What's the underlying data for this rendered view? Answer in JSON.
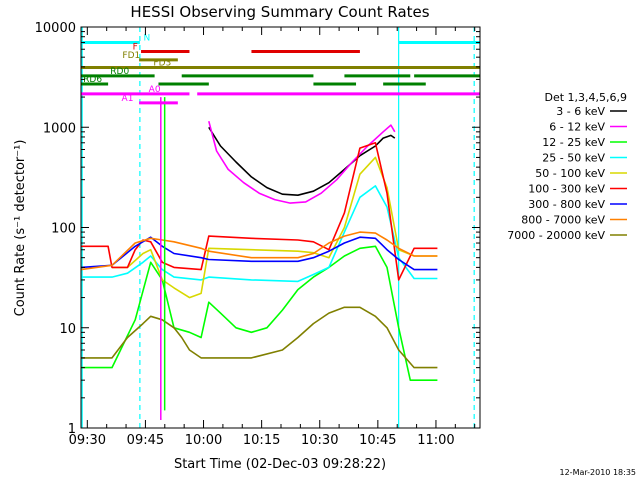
{
  "chart_data": {
    "type": "line",
    "title": "HESSI Observing Summary Count Rates",
    "xlabel": "Start Time (02-Dec-03 09:28:22)",
    "ylabel": "Count Rate (s⁻¹ detector⁻¹)",
    "x_unit": "minutes after 09:28:22",
    "xlim": [
      0,
      103
    ],
    "ylim": [
      1,
      10000
    ],
    "y_scale": "log",
    "x_ticks": [
      {
        "value": 1.63,
        "label": "09:30"
      },
      {
        "value": 16.63,
        "label": "09:45"
      },
      {
        "value": 31.63,
        "label": "10:00"
      },
      {
        "value": 46.63,
        "label": "10:15"
      },
      {
        "value": 61.63,
        "label": "10:30"
      },
      {
        "value": 76.63,
        "label": "10:45"
      },
      {
        "value": 91.63,
        "label": "11:00"
      }
    ],
    "y_ticks": [
      {
        "value": 1,
        "label": "1"
      },
      {
        "value": 10,
        "label": "10"
      },
      {
        "value": 100,
        "label": "100"
      },
      {
        "value": 1000,
        "label": "1000"
      },
      {
        "value": 10000,
        "label": "10000"
      }
    ],
    "grid": false,
    "legend_title": "Det 1,3,4,5,6,9",
    "legend_position": "right",
    "series": [
      {
        "name": "3 - 6 keV",
        "color": "#000000",
        "points": [
          [
            33,
            1000
          ],
          [
            36,
            650
          ],
          [
            40,
            450
          ],
          [
            44,
            320
          ],
          [
            48,
            250
          ],
          [
            52,
            215
          ],
          [
            56,
            210
          ],
          [
            60,
            230
          ],
          [
            64,
            280
          ],
          [
            68,
            380
          ],
          [
            72,
            520
          ],
          [
            76,
            650
          ],
          [
            78,
            780
          ],
          [
            80,
            830
          ],
          [
            81,
            780
          ]
        ]
      },
      {
        "name": "6 - 12 keV",
        "color": "#ff00ff",
        "points": [
          [
            33,
            1150
          ],
          [
            35,
            580
          ],
          [
            38,
            380
          ],
          [
            42,
            280
          ],
          [
            46,
            220
          ],
          [
            50,
            190
          ],
          [
            54,
            175
          ],
          [
            58,
            180
          ],
          [
            62,
            220
          ],
          [
            66,
            300
          ],
          [
            70,
            450
          ],
          [
            74,
            650
          ],
          [
            78,
            900
          ],
          [
            80,
            1050
          ],
          [
            81,
            900
          ]
        ]
      },
      {
        "name": "12 - 25 keV",
        "color": "#00ff00",
        "points": [
          [
            0,
            4
          ],
          [
            8,
            4
          ],
          [
            14,
            12
          ],
          [
            18,
            45
          ],
          [
            21,
            30
          ],
          [
            24,
            10
          ],
          [
            28,
            9
          ],
          [
            31,
            8
          ],
          [
            33,
            18
          ],
          [
            36,
            14
          ],
          [
            40,
            10
          ],
          [
            44,
            9
          ],
          [
            48,
            10
          ],
          [
            52,
            15
          ],
          [
            56,
            24
          ],
          [
            60,
            32
          ],
          [
            64,
            40
          ],
          [
            68,
            52
          ],
          [
            72,
            62
          ],
          [
            76,
            65
          ],
          [
            79,
            40
          ],
          [
            82,
            10
          ],
          [
            85,
            3
          ],
          [
            92,
            3
          ]
        ]
      },
      {
        "name": "25 - 50 keV",
        "color": "#00ffff",
        "points": [
          [
            0,
            32
          ],
          [
            8,
            32
          ],
          [
            12,
            35
          ],
          [
            16,
            45
          ],
          [
            18,
            52
          ],
          [
            21,
            38
          ],
          [
            24,
            32
          ],
          [
            31,
            30
          ],
          [
            33,
            32
          ],
          [
            44,
            30
          ],
          [
            56,
            29
          ],
          [
            60,
            34
          ],
          [
            64,
            40
          ],
          [
            68,
            90
          ],
          [
            72,
            200
          ],
          [
            76,
            260
          ],
          [
            79,
            160
          ],
          [
            82,
            50
          ],
          [
            86,
            31
          ],
          [
            92,
            31
          ]
        ]
      },
      {
        "name": "50 - 100 keV",
        "color": "#d8d800",
        "points": [
          [
            8,
            40
          ],
          [
            12,
            40
          ],
          [
            16,
            55
          ],
          [
            18,
            60
          ],
          [
            21,
            30
          ],
          [
            24,
            25
          ],
          [
            28,
            20
          ],
          [
            31,
            22
          ],
          [
            33,
            62
          ],
          [
            44,
            60
          ],
          [
            56,
            58
          ],
          [
            60,
            56
          ],
          [
            64,
            50
          ],
          [
            68,
            100
          ],
          [
            72,
            340
          ],
          [
            76,
            500
          ],
          [
            79,
            250
          ],
          [
            82,
            60
          ],
          [
            86,
            52
          ],
          [
            92,
            52
          ]
        ]
      },
      {
        "name": "100 - 300 keV",
        "color": "#ff0000",
        "points": [
          [
            0,
            65
          ],
          [
            7,
            65
          ],
          [
            8,
            40
          ],
          [
            12,
            40
          ],
          [
            14,
            60
          ],
          [
            16,
            75
          ],
          [
            18,
            72
          ],
          [
            21,
            45
          ],
          [
            24,
            40
          ],
          [
            31,
            38
          ],
          [
            33,
            82
          ],
          [
            44,
            78
          ],
          [
            56,
            75
          ],
          [
            60,
            72
          ],
          [
            64,
            60
          ],
          [
            68,
            140
          ],
          [
            72,
            620
          ],
          [
            76,
            700
          ],
          [
            79,
            220
          ],
          [
            82,
            30
          ],
          [
            86,
            62
          ],
          [
            92,
            62
          ]
        ]
      },
      {
        "name": "300 - 800 keV",
        "color": "#0000ff",
        "points": [
          [
            0,
            40
          ],
          [
            8,
            42
          ],
          [
            14,
            65
          ],
          [
            18,
            80
          ],
          [
            21,
            65
          ],
          [
            24,
            55
          ],
          [
            31,
            50
          ],
          [
            33,
            48
          ],
          [
            44,
            46
          ],
          [
            56,
            46
          ],
          [
            60,
            50
          ],
          [
            64,
            58
          ],
          [
            68,
            70
          ],
          [
            72,
            80
          ],
          [
            76,
            78
          ],
          [
            79,
            60
          ],
          [
            82,
            48
          ],
          [
            86,
            38
          ],
          [
            92,
            38
          ]
        ]
      },
      {
        "name": "800 - 7000 keV",
        "color": "#ff8000",
        "points": [
          [
            0,
            38
          ],
          [
            8,
            42
          ],
          [
            14,
            70
          ],
          [
            18,
            78
          ],
          [
            21,
            75
          ],
          [
            24,
            72
          ],
          [
            31,
            62
          ],
          [
            33,
            58
          ],
          [
            44,
            50
          ],
          [
            56,
            50
          ],
          [
            60,
            55
          ],
          [
            64,
            70
          ],
          [
            68,
            82
          ],
          [
            72,
            90
          ],
          [
            76,
            88
          ],
          [
            79,
            75
          ],
          [
            82,
            62
          ],
          [
            86,
            52
          ],
          [
            92,
            52
          ]
        ]
      },
      {
        "name": "7000 - 20000 keV",
        "color": "#808000",
        "points": [
          [
            0,
            5
          ],
          [
            8,
            5
          ],
          [
            12,
            8
          ],
          [
            16,
            11
          ],
          [
            18,
            13
          ],
          [
            21,
            12
          ],
          [
            24,
            10
          ],
          [
            26,
            8
          ],
          [
            28,
            6
          ],
          [
            31,
            5
          ],
          [
            33,
            5
          ],
          [
            44,
            5
          ],
          [
            52,
            6
          ],
          [
            56,
            8
          ],
          [
            60,
            11
          ],
          [
            64,
            14
          ],
          [
            68,
            16
          ],
          [
            72,
            16
          ],
          [
            76,
            13
          ],
          [
            79,
            10
          ],
          [
            82,
            6
          ],
          [
            86,
            4
          ],
          [
            92,
            4
          ]
        ]
      }
    ],
    "flags": [
      {
        "name": "N",
        "color": "#00ffff",
        "y": 7000,
        "segments": [
          [
            0,
            15.2
          ],
          [
            82,
            103
          ]
        ],
        "label_x": 17
      },
      {
        "name": "F",
        "color": "#e00000",
        "y": 5700,
        "segments": [
          [
            15.5,
            28
          ],
          [
            44,
            72
          ]
        ],
        "label_x": 14
      },
      {
        "name": "FD1",
        "color": "#808000",
        "y": 4700,
        "segments": [
          [
            15,
            25
          ]
        ],
        "label_x": 13
      },
      {
        "name": "FD3",
        "color": "#808000",
        "y": 3950,
        "segments": [
          [
            0,
            103
          ]
        ],
        "label_x": 21
      },
      {
        "name": "RD0",
        "color": "#008000",
        "y": 3250,
        "segments": [
          [
            0,
            19
          ],
          [
            26,
            60
          ],
          [
            68,
            85
          ],
          [
            86,
            103
          ]
        ],
        "label_x": 10
      },
      {
        "name": "RD6",
        "color": "#008000",
        "y": 2700,
        "segments": [
          [
            0,
            7
          ],
          [
            20,
            33
          ],
          [
            60,
            71
          ],
          [
            78,
            89
          ]
        ],
        "label_x": 3
      },
      {
        "name": "A0",
        "color": "#ff00ff",
        "y": 2150,
        "segments": [
          [
            0,
            28
          ],
          [
            30,
            103
          ]
        ],
        "label_x": 19
      },
      {
        "name": "A1",
        "color": "#ff00ff",
        "y": 1750,
        "segments": [
          [
            15,
            25
          ]
        ],
        "label_x": 12
      }
    ],
    "spikes": [
      {
        "color": "#ff00ff",
        "x": 20.6,
        "y_low": 1.2,
        "y_high": 2000
      },
      {
        "color": "#00ff00",
        "x": 21.6,
        "y_low": 1.5,
        "y_high": 2000
      }
    ],
    "saa_boundaries": [
      {
        "color": "#00ffff",
        "style": "solid",
        "x": 0.3
      },
      {
        "color": "#00ffff",
        "style": "dashed",
        "x": 15.2
      },
      {
        "color": "#00ffff",
        "style": "solid",
        "x": 82
      },
      {
        "color": "#00ffff",
        "style": "dashed",
        "x": 101.5
      }
    ],
    "footer_date": "12-Mar-2010 18:35"
  }
}
